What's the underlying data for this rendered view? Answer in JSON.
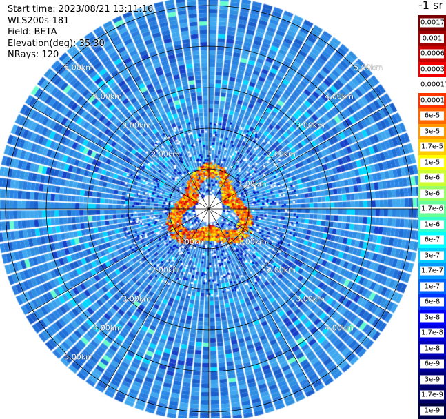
{
  "info": {
    "start_time": "Start time: 2023/08/21 13:11:16",
    "instrument": "WLS200s-181",
    "field": "Field: BETA",
    "elevation": "Elevation(deg): 35.30",
    "nrays": "NRays: 120"
  },
  "units_label": "-1 sr",
  "ring_labels": {
    "r1": "1.00km",
    "r2": "2.00km",
    "r3": "3.00km",
    "r4": "4.00km",
    "r5": "5.00km"
  },
  "colorbar": {
    "labels": [
      "0.0017",
      "0.001",
      "0.0006",
      "0.0003",
      "0.00017",
      "0.0001",
      "6e-5",
      "3e-5",
      "1.7e-5",
      "1e-5",
      "6e-6",
      "3e-6",
      "1.7e-6",
      "1e-6",
      "6e-7",
      "3e-7",
      "1.7e-7",
      "1e-7",
      "6e-8",
      "3e-8",
      "1.7e-8",
      "1e-8",
      "6e-9",
      "3e-9",
      "1.7e-9",
      "1e-9"
    ],
    "colors": [
      "#7a0000",
      "#a00000",
      "#c80000",
      "#f00000",
      "#ffffff",
      "#ff3300",
      "#ff6600",
      "#ff9900",
      "#ffcc00",
      "#ffff00",
      "#ccff33",
      "#99ff66",
      "#66ff99",
      "#33ffcc",
      "#00ffff",
      "#00ccff",
      "#0099ff",
      "#0066ff",
      "#0033ff",
      "#0000ff",
      "#0000dd",
      "#0000bb",
      "#000099",
      "#000077",
      "#000066",
      "#000044"
    ]
  },
  "colors": {
    "background_field": "#2f8fe0",
    "hot_ring": "#ff6600"
  }
}
